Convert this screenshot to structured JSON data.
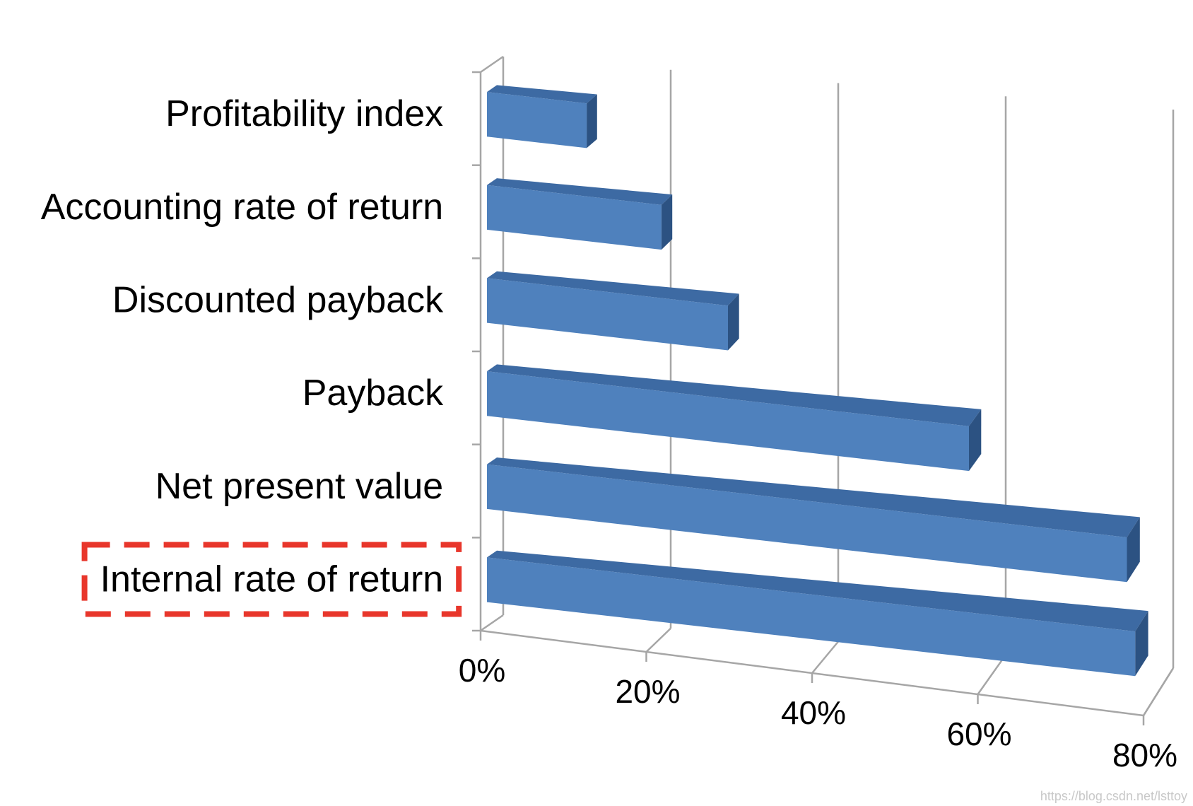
{
  "chart_data": {
    "type": "bar",
    "orientation": "horizontal",
    "style": "3d",
    "categories": [
      "Profitability index",
      "Accounting rate of return",
      "Discounted payback",
      "Payback",
      "Net present value",
      "Internal rate of return"
    ],
    "values": [
      12,
      21,
      29,
      58,
      77,
      78
    ],
    "xlim": [
      0,
      80
    ],
    "x_ticks": [
      "0%",
      "20%",
      "40%",
      "60%",
      "80%"
    ],
    "gridlines": true,
    "legend": "none",
    "highlighted_category": "Internal rate of return",
    "colors": {
      "bar_front": "#4f81bd",
      "bar_top": "#3d6aa3",
      "bar_side": "#2c5282",
      "grid": "#a6a6a6",
      "highlight_box": "#e8362b"
    }
  },
  "watermark": "https://blog.csdn.net/lsttoy"
}
